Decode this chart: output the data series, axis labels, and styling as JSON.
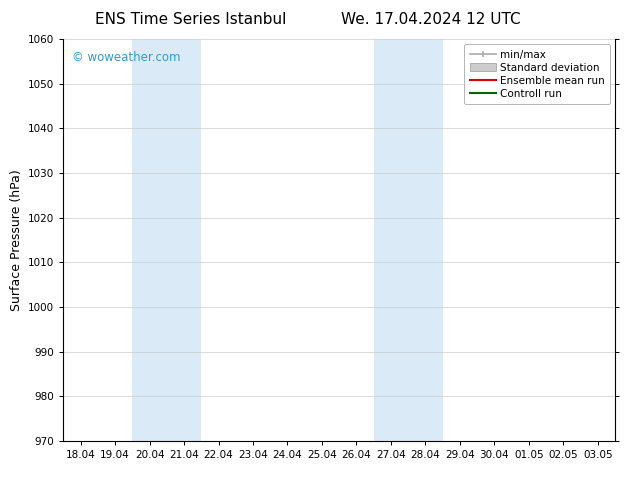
{
  "title_left": "ENS Time Series Istanbul",
  "title_right": "We. 17.04.2024 12 UTC",
  "ylabel": "Surface Pressure (hPa)",
  "ylim": [
    970,
    1060
  ],
  "yticks": [
    970,
    980,
    990,
    1000,
    1010,
    1020,
    1030,
    1040,
    1050,
    1060
  ],
  "xtick_labels": [
    "18.04",
    "19.04",
    "20.04",
    "21.04",
    "22.04",
    "23.04",
    "24.04",
    "25.04",
    "26.04",
    "27.04",
    "28.04",
    "29.04",
    "30.04",
    "01.05",
    "02.05",
    "03.05"
  ],
  "background_color": "#ffffff",
  "plot_bg_color": "#ffffff",
  "shaded_regions": [
    {
      "xstart": 2,
      "xend": 4,
      "color": "#daeaf7"
    },
    {
      "xstart": 9,
      "xend": 11,
      "color": "#daeaf7"
    }
  ],
  "watermark_text": "© woweather.com",
  "watermark_color": "#3399cc",
  "grid_color": "#cccccc",
  "tick_label_fontsize": 7.5,
  "axis_label_fontsize": 9,
  "title_fontsize": 11,
  "legend_fontsize": 7.5
}
